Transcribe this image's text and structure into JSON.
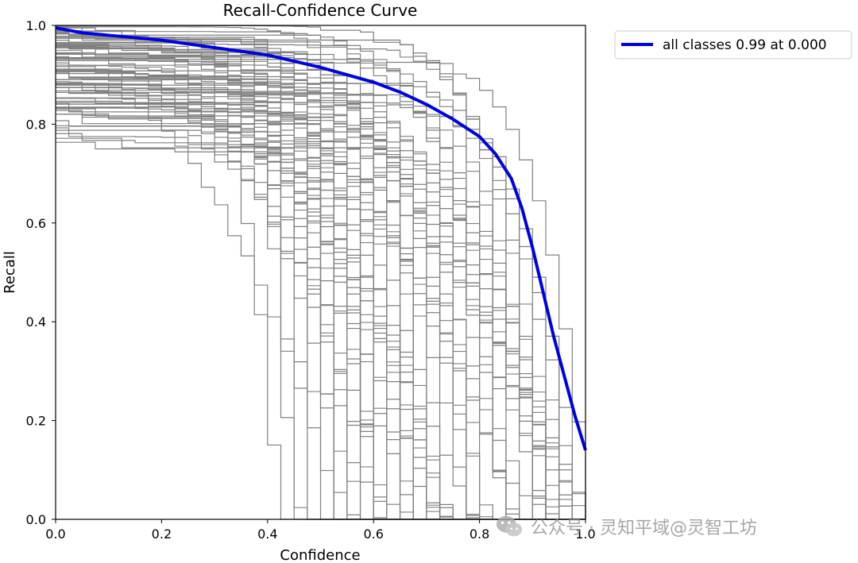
{
  "chart_data": {
    "type": "line",
    "title": "Recall-Confidence Curve",
    "xlabel": "Confidence",
    "ylabel": "Recall",
    "xlim": [
      0,
      1
    ],
    "ylim": [
      0,
      1
    ],
    "x_ticks": [
      "0.0",
      "0.2",
      "0.4",
      "0.6",
      "0.8",
      "1.0"
    ],
    "y_ticks": [
      "0.0",
      "0.2",
      "0.4",
      "0.6",
      "0.8",
      "1.0"
    ],
    "grid": false,
    "legend_position": "outside-top-right",
    "series": [
      {
        "name": "all classes 0.99 at 0.000",
        "color": "#0000e0",
        "x": [
          0.0,
          0.05,
          0.1,
          0.2,
          0.3,
          0.4,
          0.5,
          0.55,
          0.6,
          0.65,
          0.7,
          0.75,
          0.8,
          0.83,
          0.86,
          0.88,
          0.9,
          0.92,
          0.94,
          0.96,
          0.98,
          1.0
        ],
        "y": [
          0.995,
          0.985,
          0.98,
          0.97,
          0.955,
          0.94,
          0.915,
          0.9,
          0.885,
          0.865,
          0.84,
          0.81,
          0.775,
          0.74,
          0.69,
          0.63,
          0.55,
          0.46,
          0.37,
          0.29,
          0.21,
          0.14
        ]
      }
    ],
    "background_curves": {
      "color": "#808080",
      "description_count": 80
    }
  },
  "watermark": {
    "text": "公众号 · 灵知平域@灵智工坊"
  }
}
